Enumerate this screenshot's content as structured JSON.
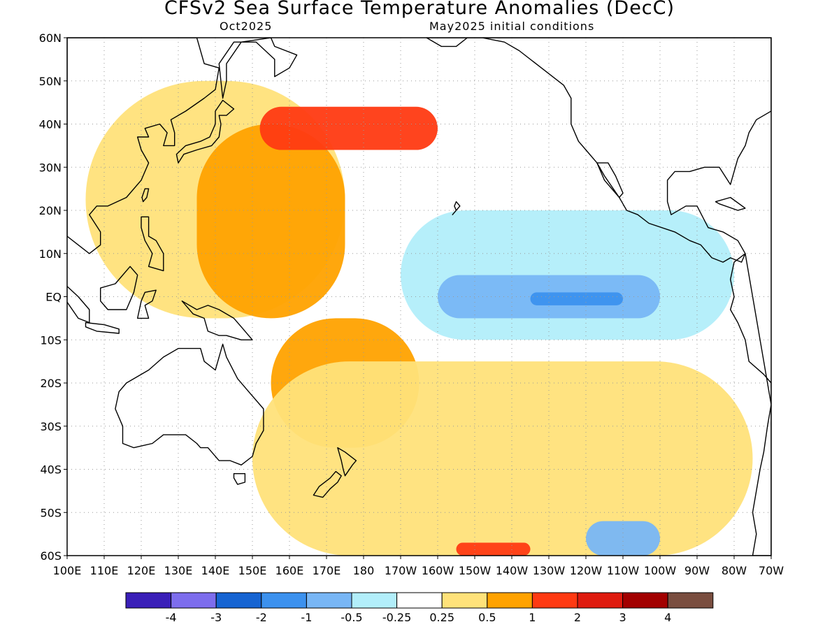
{
  "title": "CFSv2 Sea Surface Temperature Anomalies (DecC)",
  "subtitle_left": "Oct2025",
  "subtitle_right": "May2025 initial conditions",
  "chart_data": {
    "type": "heatmap",
    "title": "CFSv2 Sea Surface Temperature Anomalies (DecC)",
    "xlim": [
      100,
      290
    ],
    "ylim": [
      -60,
      60
    ],
    "grid": true,
    "y_ticks": [
      "60N",
      "50N",
      "40N",
      "30N",
      "20N",
      "10N",
      "EQ",
      "10S",
      "20S",
      "30S",
      "40S",
      "50S",
      "60S"
    ],
    "x_ticks": [
      "100E",
      "110E",
      "120E",
      "130E",
      "140E",
      "150E",
      "160E",
      "170E",
      "180",
      "170W",
      "160W",
      "150W",
      "140W",
      "130W",
      "120W",
      "110W",
      "100W",
      "90W",
      "80W",
      "70W"
    ],
    "colorbar": {
      "colors": [
        "#3a1fb8",
        "#7d6ded",
        "#1664d2",
        "#3c91ee",
        "#78b6f5",
        "#b2eefa",
        "#ffffff",
        "#ffe27a",
        "#ffa200",
        "#ff3a12",
        "#df1b0f",
        "#a20000",
        "#7a4e40"
      ],
      "labels": [
        "-4",
        "-3",
        "-2",
        "-1",
        "-0.5",
        "-0.25",
        "0.25",
        "0.5",
        "1",
        "2",
        "3",
        "4"
      ]
    },
    "regions": [
      {
        "anomaly": "0.25 to 0.5",
        "lon": [
          105,
          175
        ],
        "lat": [
          -5,
          50
        ],
        "level": 0.25
      },
      {
        "anomaly": "0.5 to 1",
        "lon": [
          135,
          175
        ],
        "lat": [
          -5,
          40
        ],
        "level": 0.5
      },
      {
        "anomaly": "1 to 2",
        "lon": [
          152,
          200
        ],
        "lat": [
          34,
          44
        ],
        "level": 1
      },
      {
        "anomaly": "-0.25 to -0.5",
        "lon": [
          190,
          280
        ],
        "lat": [
          -10,
          20
        ],
        "level": -0.25
      },
      {
        "anomaly": "-0.5 to -1",
        "lon": [
          200,
          260
        ],
        "lat": [
          -5,
          5
        ],
        "level": -0.5
      },
      {
        "anomaly": "-1 to -2",
        "lon": [
          225,
          250
        ],
        "lat": [
          -2,
          1
        ],
        "level": -1
      },
      {
        "anomaly": "0.5 to 1",
        "lon": [
          155,
          195
        ],
        "lat": [
          -35,
          -5
        ],
        "level": 0.5
      },
      {
        "anomaly": "0.25 to 0.5",
        "lon": [
          150,
          285
        ],
        "lat": [
          -60,
          -15
        ],
        "level": 0.25
      },
      {
        "anomaly": "1 to 2",
        "lon": [
          205,
          225
        ],
        "lat": [
          -60,
          -57
        ],
        "level": 1
      },
      {
        "anomaly": "-0.5 to -1",
        "lon": [
          240,
          260
        ],
        "lat": [
          -60,
          -52
        ],
        "level": -0.5
      }
    ]
  }
}
